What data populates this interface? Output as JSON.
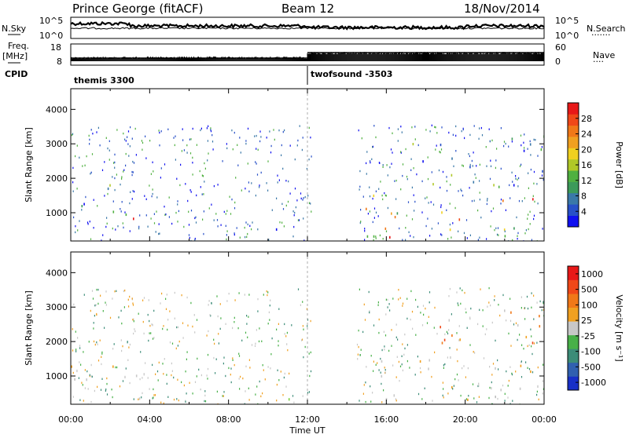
{
  "header": {
    "station": "Prince George (fitACF)",
    "beam": "Beam 12",
    "date": "18/Nov/2014"
  },
  "strip_labels": {
    "nsky": "N.Sky",
    "nsearch": "N.Search",
    "nsearch_dots": "·······",
    "freq": "Freq.",
    "freq_unit": "[MHz]",
    "nave": "Nave",
    "nave_dots": "····",
    "cpid": "CPID",
    "nsky_ticks_left": [
      "10^5",
      "10^0"
    ],
    "nsky_ticks_right": [
      "10^5",
      "10^0"
    ],
    "freq_ticks": [
      "18",
      "8"
    ],
    "nave_ticks": [
      "60",
      "0"
    ],
    "cpid_segments": [
      {
        "label": "themis 3300",
        "start_hour": 0
      },
      {
        "label": "twofsound -3503",
        "start_hour": 12
      }
    ]
  },
  "x_axis": {
    "label": "Time UT",
    "ticks": [
      "00:00",
      "04:00",
      "08:00",
      "12:00",
      "16:00",
      "20:00",
      "00:00"
    ],
    "range_hours": [
      0,
      24
    ]
  },
  "chart_data": [
    {
      "type": "heatmap",
      "panel": "power",
      "ylabel": "Slant Range [km]",
      "yticks": [
        1000,
        2000,
        3000,
        4000
      ],
      "ylim": [
        180,
        4600
      ],
      "colorbar_label": "Power [dB]",
      "colorbar_ticks": [
        4,
        8,
        12,
        16,
        20,
        24,
        28
      ],
      "colorbar_colors": [
        "#1010f0",
        "#2850c8",
        "#3a78a8",
        "#3c9a5a",
        "#50b040",
        "#b0c828",
        "#f0d020",
        "#f0a020",
        "#f07818",
        "#f04818",
        "#e81818"
      ],
      "regions": [
        {
          "t0": 0.0,
          "t1": 3.0,
          "r0": 600,
          "r1": 2100,
          "level": "mixed"
        },
        {
          "t0": 1.5,
          "t1": 3.4,
          "r0": 400,
          "r1": 900,
          "level": "high"
        },
        {
          "t0": 9.8,
          "t1": 12.2,
          "r0": 300,
          "r1": 600,
          "level": "mixed"
        },
        {
          "t0": 14.8,
          "t1": 24.0,
          "r0": 300,
          "r1": 1600,
          "level": "high"
        },
        {
          "t0": 17.0,
          "t1": 24.0,
          "r0": 1600,
          "r1": 3300,
          "level": "mixed"
        }
      ]
    },
    {
      "type": "heatmap",
      "panel": "velocity",
      "ylabel": "Slant Range [km]",
      "yticks": [
        1000,
        2000,
        3000,
        4000
      ],
      "ylim": [
        180,
        4600
      ],
      "colorbar_label": "Velocity [m s⁻¹]",
      "colorbar_ticks": [
        1000,
        500,
        100,
        25,
        -25,
        -100,
        -500,
        -1000
      ],
      "colorbar_colors": [
        "#1830c8",
        "#3060b0",
        "#3c8c78",
        "#48b048",
        "#c8c8c8",
        "#f0a020",
        "#f07818",
        "#f04818",
        "#e81818"
      ],
      "regions": [
        {
          "t0": 0.0,
          "t1": 4.0,
          "r0": 300,
          "r1": 1800,
          "level": "gray"
        },
        {
          "t0": 10.0,
          "t1": 12.2,
          "r0": 180,
          "r1": 500,
          "level": "green"
        },
        {
          "t0": 15.0,
          "t1": 24.0,
          "r0": 300,
          "r1": 1700,
          "level": "gray"
        },
        {
          "t0": 18.0,
          "t1": 24.0,
          "r0": 1800,
          "r1": 3300,
          "level": "red"
        }
      ]
    }
  ]
}
